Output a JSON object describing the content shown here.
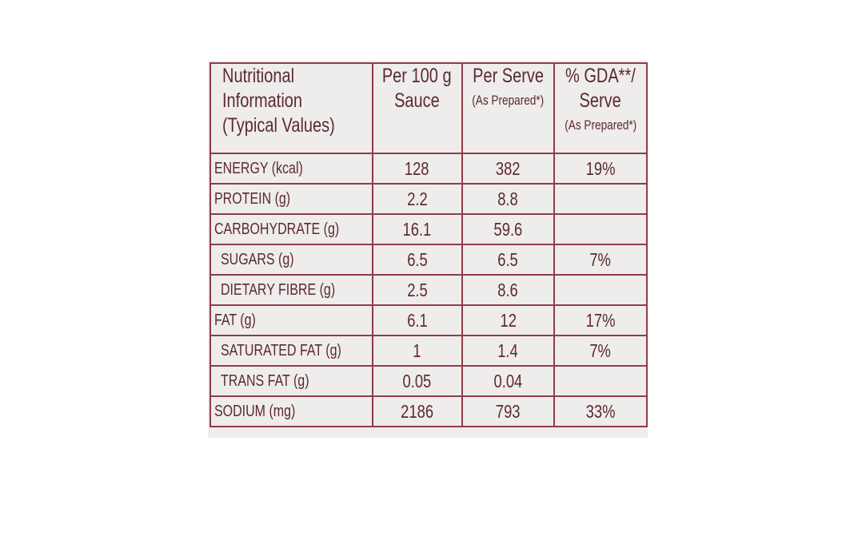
{
  "table": {
    "header": [
      [
        "Nutritional",
        "Information",
        "(Typical Values)"
      ],
      [
        "Per 100 g",
        "Sauce"
      ],
      [
        "Per Serve",
        "(As Prepared*)"
      ],
      [
        "% GDA**/",
        "Serve",
        "(As Prepared*)"
      ]
    ],
    "rows": [
      [
        "ENERGY (kcal)",
        "128",
        "382",
        "19%"
      ],
      [
        "PROTEIN (g)",
        "2.2",
        "8.8",
        null
      ],
      [
        "CARBOHYDRATE (g)",
        "16.1",
        "59.6",
        null
      ],
      [
        "SUGARS (g)",
        "6.5",
        "6.5",
        "7%"
      ],
      [
        "DIETARY FIBRE (g)",
        "2.5",
        "8.6",
        null
      ],
      [
        "FAT (g)",
        "6.1",
        "12",
        "17%"
      ],
      [
        "SATURATED FAT (g)",
        "1",
        "1.4",
        "7%"
      ],
      [
        "TRANS FAT (g)",
        "0.05",
        "0.04",
        null
      ],
      [
        "SODIUM (mg)",
        "2186",
        "793",
        "33%"
      ]
    ]
  }
}
